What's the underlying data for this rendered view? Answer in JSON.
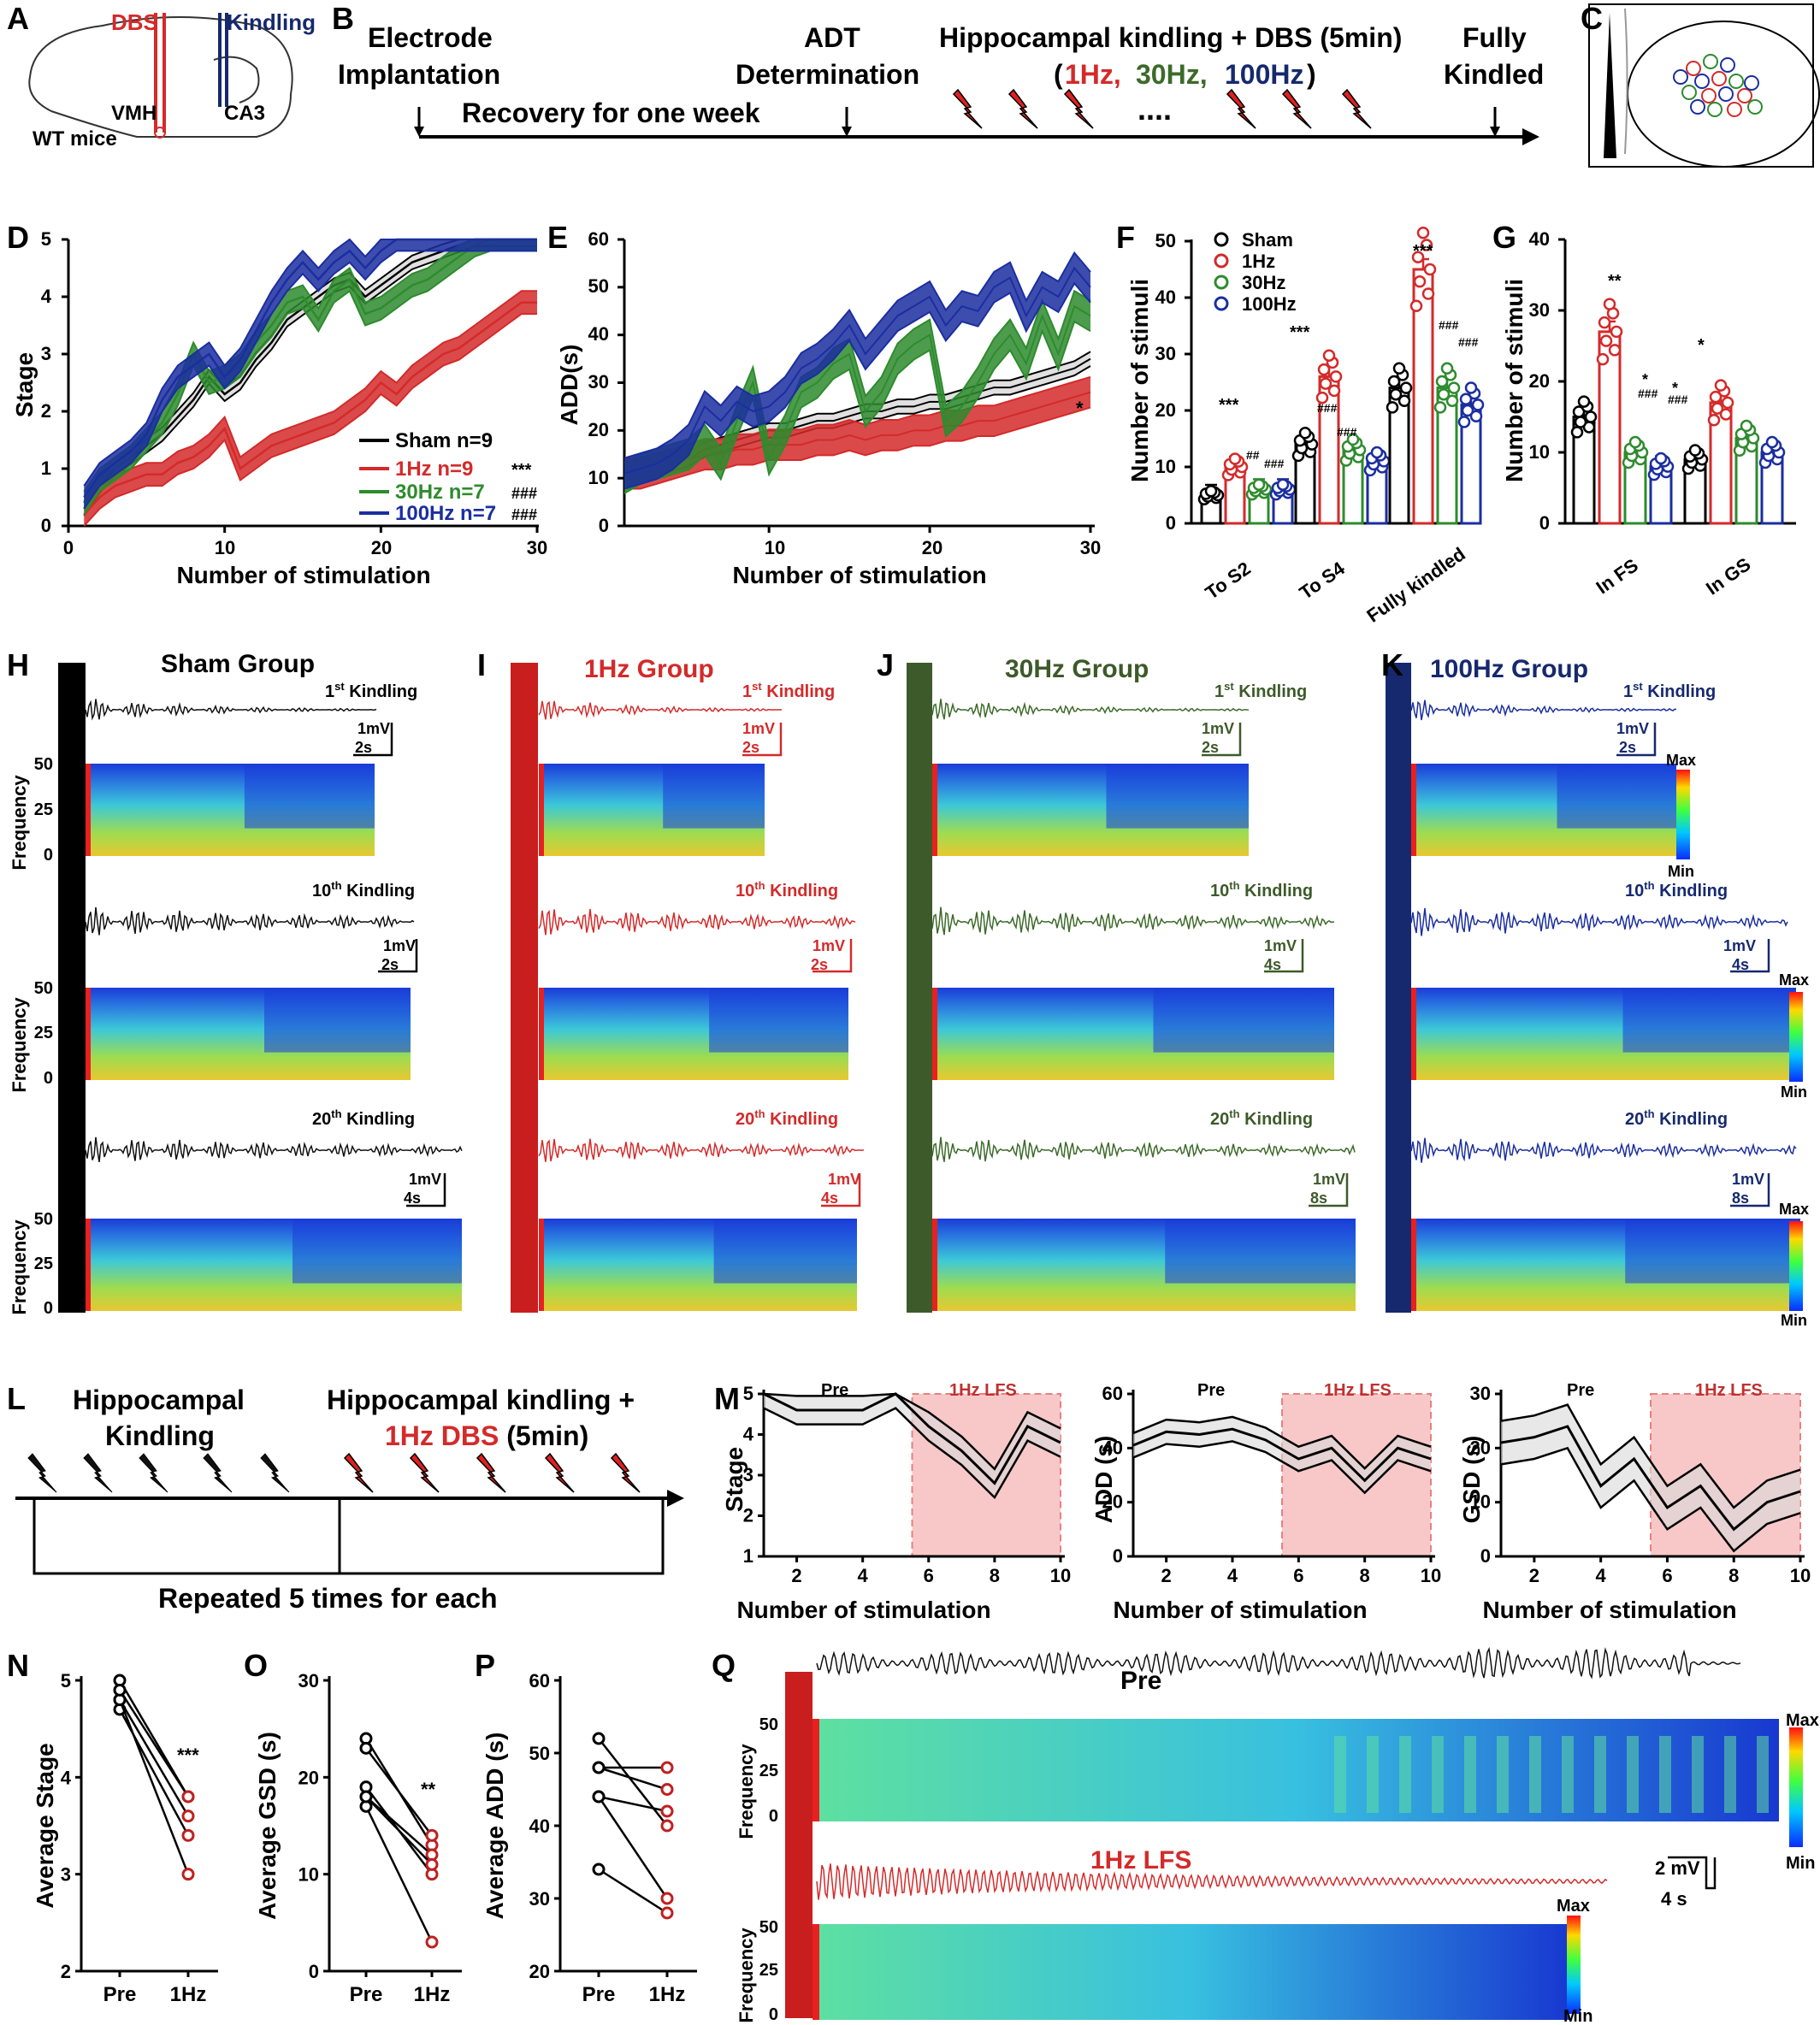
{
  "panel_letters": [
    "A",
    "B",
    "C",
    "D",
    "E",
    "F",
    "G",
    "H",
    "I",
    "J",
    "K",
    "L",
    "M",
    "N",
    "O",
    "P",
    "Q"
  ],
  "colors": {
    "sham": "#000000",
    "hz1": "#d42a2a",
    "hz30": "#2e8b2e",
    "hz100": "#1b2ea0",
    "navy": "#16296e",
    "dkgreen": "#3d5a2a"
  },
  "panelA": {
    "dbs": "DBS",
    "kindling": "Kindling",
    "vmh": "VMH",
    "ca3": "CA3",
    "mice": "WT mice"
  },
  "panelB": {
    "electrode": "Electrode",
    "implantation": "Implantation",
    "recovery": "Recovery for one week",
    "adt": "ADT",
    "determination": "Determination",
    "kindling_dbs": "Hippocampal kindling + DBS (5min)",
    "paren_open": "(",
    "hz1": "1Hz,",
    "hz30": "30Hz,",
    "hz100": "100Hz",
    "paren_close": ")",
    "dots": "....",
    "fully": "Fully",
    "kindled": "Kindled"
  },
  "panelD": {
    "ylabel": "Stage",
    "xlabel": "Number of stimulation",
    "xticks": [
      "0",
      "10",
      "20",
      "30"
    ],
    "yticks": [
      "0",
      "1",
      "2",
      "3",
      "4",
      "5"
    ],
    "legend": [
      "Sham n=9",
      "1Hz n=9",
      "30Hz n=7",
      "100Hz n=7"
    ],
    "sig": [
      "***",
      "###",
      "###"
    ]
  },
  "panelE": {
    "ylabel": "ADD(s)",
    "xlabel": "Number of stimulation",
    "xticks": [
      "10",
      "20",
      "30"
    ],
    "yticks": [
      "0",
      "10",
      "20",
      "30",
      "40",
      "50",
      "60"
    ],
    "star": "*"
  },
  "panelF": {
    "ylabel": "Number of stimuli",
    "yticks": [
      "0",
      "10",
      "20",
      "30",
      "40",
      "50"
    ],
    "categories": [
      "To S2",
      "To S4",
      "Fully kindled"
    ],
    "legend": [
      "Sham",
      "1Hz",
      "30Hz",
      "100Hz"
    ],
    "sig": {
      "s2": [
        "***",
        "##",
        "###"
      ],
      "s4": [
        "***",
        "###",
        "###"
      ],
      "fk": [
        "***",
        "###",
        "###"
      ]
    }
  },
  "panelG": {
    "ylabel": "Number of stimuli",
    "yticks": [
      "0",
      "10",
      "20",
      "30",
      "40"
    ],
    "categories": [
      "In FS",
      "In GS"
    ],
    "sig": {
      "fs": [
        "**",
        "*",
        "###",
        "*",
        "###"
      ],
      "gs": [
        "*"
      ]
    }
  },
  "groups": {
    "sham": "Sham Group",
    "hz1": "1Hz Group",
    "hz30": "30Hz Group",
    "hz100": "100Hz Group"
  },
  "traces": {
    "k1": [
      "1",
      "st",
      " Kindling"
    ],
    "k10": [
      "10",
      "th",
      " Kindling"
    ],
    "k20": [
      "20",
      "th",
      " Kindling"
    ],
    "scale_mv": "1mV",
    "s2": "2s",
    "s4": "4s",
    "s8": "8s",
    "freq": "Frequency",
    "f50": "50",
    "f25": "25",
    "f0": "0",
    "max": "Max",
    "min": "Min"
  },
  "panelL": {
    "hk": "Hippocampal",
    "k": "Kindling",
    "hk2": "Hippocampal kindling +",
    "dbs1": "1Hz DBS",
    "dbs2": " (5min)",
    "repeat": "Repeated 5 times for each"
  },
  "panelM": {
    "pre": "Pre",
    "lfs": "1Hz LFS",
    "xlabel": "Number of stimulation",
    "xticks": [
      "2",
      "4",
      "6",
      "8",
      "10"
    ],
    "m1": {
      "ylabel": "Stage",
      "yticks": [
        "1",
        "2",
        "3",
        "4",
        "5"
      ]
    },
    "m2": {
      "ylabel": "ADD (s)",
      "yticks": [
        "0",
        "20",
        "40",
        "60"
      ]
    },
    "m3": {
      "ylabel": "GSD (s)",
      "yticks": [
        "0",
        "10",
        "20",
        "30"
      ]
    }
  },
  "panelN": {
    "ylabel": "Average Stage",
    "yticks": [
      "2",
      "3",
      "4",
      "5"
    ],
    "x": [
      "Pre",
      "1Hz"
    ],
    "sig": "***"
  },
  "panelO": {
    "ylabel": "Average GSD (s)",
    "yticks": [
      "0",
      "10",
      "20",
      "30"
    ],
    "x": [
      "Pre",
      "1Hz"
    ],
    "sig": "**"
  },
  "panelP": {
    "ylabel": "Average  ADD (s)",
    "yticks": [
      "20",
      "30",
      "40",
      "50",
      "60"
    ],
    "x": [
      "Pre",
      "1Hz"
    ]
  },
  "panelQ": {
    "pre": "Pre",
    "lfs": "1Hz LFS",
    "mv": "2 mV",
    "s": "4 s"
  },
  "chart_data": [
    {
      "type": "line",
      "panel": "D",
      "x": [
        1,
        2,
        3,
        4,
        5,
        6,
        7,
        8,
        9,
        10,
        11,
        12,
        13,
        14,
        15,
        16,
        17,
        18,
        19,
        20,
        21,
        22,
        23,
        24,
        25,
        26,
        27,
        28,
        29,
        30
      ],
      "series": [
        {
          "name": "Sham n=9",
          "values": [
            0.3,
            0.7,
            1.0,
            1.2,
            1.4,
            1.6,
            1.9,
            2.2,
            2.6,
            2.3,
            2.5,
            2.9,
            3.2,
            3.6,
            3.8,
            4.0,
            4.2,
            4.3,
            4.0,
            4.2,
            4.4,
            4.6,
            4.7,
            4.8,
            4.9,
            5,
            5,
            5,
            5,
            5
          ]
        },
        {
          "name": "1Hz n=9",
          "values": [
            0.2,
            0.5,
            0.7,
            0.8,
            0.9,
            0.9,
            1.1,
            1.2,
            1.4,
            1.7,
            1.0,
            1.2,
            1.4,
            1.5,
            1.6,
            1.7,
            1.8,
            2.0,
            2.2,
            2.5,
            2.3,
            2.6,
            2.8,
            3.0,
            3.1,
            3.3,
            3.5,
            3.7,
            3.9,
            3.9
          ]
        },
        {
          "name": "30Hz n=7",
          "values": [
            0.4,
            0.8,
            1.0,
            1.2,
            1.5,
            1.8,
            2.3,
            3.0,
            2.5,
            2.6,
            2.8,
            3.2,
            3.5,
            3.9,
            4.0,
            3.6,
            4.1,
            4.3,
            3.7,
            3.8,
            4.0,
            4.2,
            4.3,
            4.5,
            4.7,
            4.9,
            5,
            5,
            5,
            5
          ]
        },
        {
          "name": "100Hz n=7",
          "values": [
            0.5,
            0.9,
            1.1,
            1.3,
            1.6,
            2.2,
            2.6,
            2.8,
            3.0,
            2.6,
            2.9,
            3.4,
            3.9,
            4.3,
            4.6,
            4.3,
            4.6,
            4.8,
            4.5,
            4.8,
            5,
            5,
            5,
            5,
            5,
            5,
            5,
            5,
            5,
            5
          ]
        }
      ]
    },
    {
      "type": "line",
      "panel": "E",
      "x": [
        1,
        2,
        3,
        4,
        5,
        6,
        7,
        8,
        9,
        10,
        11,
        12,
        13,
        14,
        15,
        16,
        17,
        18,
        19,
        20,
        21,
        22,
        23,
        24,
        25,
        26,
        27,
        28,
        29,
        30
      ],
      "series": [
        {
          "name": "Sham n=9",
          "values": [
            10,
            11,
            12,
            13,
            14,
            16,
            17,
            18,
            19,
            20,
            20,
            21,
            22,
            22,
            23,
            24,
            24,
            25,
            25,
            26,
            26,
            27,
            28,
            29,
            29,
            30,
            31,
            32,
            33,
            35
          ]
        },
        {
          "name": "1Hz n=9",
          "values": [
            11,
            11,
            12,
            13,
            14,
            15,
            15,
            16,
            16,
            17,
            17,
            17,
            18,
            18,
            19,
            18,
            19,
            19,
            20,
            20,
            21,
            21,
            22,
            22,
            23,
            24,
            25,
            26,
            27,
            28
          ]
        },
        {
          "name": "30Hz n=7",
          "values": [
            10,
            12,
            13,
            14,
            15,
            18,
            13,
            22,
            30,
            14,
            20,
            28,
            30,
            34,
            36,
            24,
            28,
            35,
            38,
            40,
            22,
            25,
            30,
            36,
            40,
            34,
            44,
            36,
            46,
            44
          ]
        },
        {
          "name": "100Hz n=7",
          "values": [
            11,
            12,
            13,
            15,
            18,
            25,
            22,
            26,
            24,
            25,
            28,
            33,
            35,
            38,
            42,
            36,
            40,
            44,
            46,
            48,
            42,
            46,
            45,
            50,
            52,
            44,
            50,
            48,
            54,
            50
          ]
        }
      ]
    },
    {
      "type": "bar",
      "panel": "F",
      "categories": [
        "To S2",
        "To S4",
        "Fully kindled"
      ],
      "series": [
        {
          "name": "Sham",
          "values": [
            5,
            14,
            24
          ]
        },
        {
          "name": "1Hz",
          "values": [
            10,
            26,
            45
          ]
        },
        {
          "name": "30Hz",
          "values": [
            6,
            13,
            24
          ]
        },
        {
          "name": "100Hz",
          "values": [
            6,
            11,
            21
          ]
        }
      ],
      "ylim": [
        0,
        50
      ]
    },
    {
      "type": "bar",
      "panel": "G",
      "categories": [
        "In FS",
        "In GS"
      ],
      "series": [
        {
          "name": "Sham",
          "values": [
            15,
            9
          ]
        },
        {
          "name": "1Hz",
          "values": [
            27,
            17
          ]
        },
        {
          "name": "30Hz",
          "values": [
            10,
            12
          ]
        },
        {
          "name": "100Hz",
          "values": [
            8,
            10
          ]
        }
      ],
      "ylim": [
        0,
        40
      ]
    },
    {
      "type": "line",
      "panel": "M-stage",
      "x": [
        1,
        2,
        3,
        4,
        5,
        6,
        7,
        8,
        9,
        10
      ],
      "series": [
        {
          "values": [
            5,
            4.6,
            4.6,
            4.6,
            5,
            4.2,
            3.6,
            2.8,
            4.2,
            3.8
          ]
        }
      ],
      "ylim": [
        1,
        5
      ]
    },
    {
      "type": "line",
      "panel": "M-ADD",
      "x": [
        1,
        2,
        3,
        4,
        5,
        6,
        7,
        8,
        9,
        10
      ],
      "series": [
        {
          "values": [
            41,
            46,
            45,
            47,
            43,
            36,
            40,
            28,
            40,
            36
          ]
        }
      ],
      "ylim": [
        0,
        60
      ]
    },
    {
      "type": "line",
      "panel": "M-GSD",
      "x": [
        1,
        2,
        3,
        4,
        5,
        6,
        7,
        8,
        9,
        10
      ],
      "series": [
        {
          "values": [
            21,
            22,
            24,
            13,
            18,
            9,
            13,
            5,
            10,
            12
          ]
        }
      ],
      "ylim": [
        0,
        30
      ]
    },
    {
      "type": "scatter",
      "panel": "N",
      "pairs": [
        [
          5.0,
          3.8
        ],
        [
          4.8,
          3.6
        ],
        [
          4.7,
          3.4
        ],
        [
          4.8,
          3.0
        ],
        [
          4.9,
          3.8
        ]
      ],
      "ylim": [
        2,
        5
      ]
    },
    {
      "type": "scatter",
      "panel": "O",
      "pairs": [
        [
          24,
          13
        ],
        [
          23,
          14
        ],
        [
          19,
          10
        ],
        [
          18,
          12
        ],
        [
          17,
          3
        ],
        [
          18,
          11
        ]
      ],
      "ylim": [
        0,
        30
      ]
    },
    {
      "type": "scatter",
      "panel": "P",
      "pairs": [
        [
          52,
          40
        ],
        [
          48,
          48
        ],
        [
          48,
          45
        ],
        [
          44,
          42
        ],
        [
          44,
          30
        ],
        [
          34,
          28
        ]
      ],
      "ylim": [
        20,
        60
      ]
    }
  ]
}
